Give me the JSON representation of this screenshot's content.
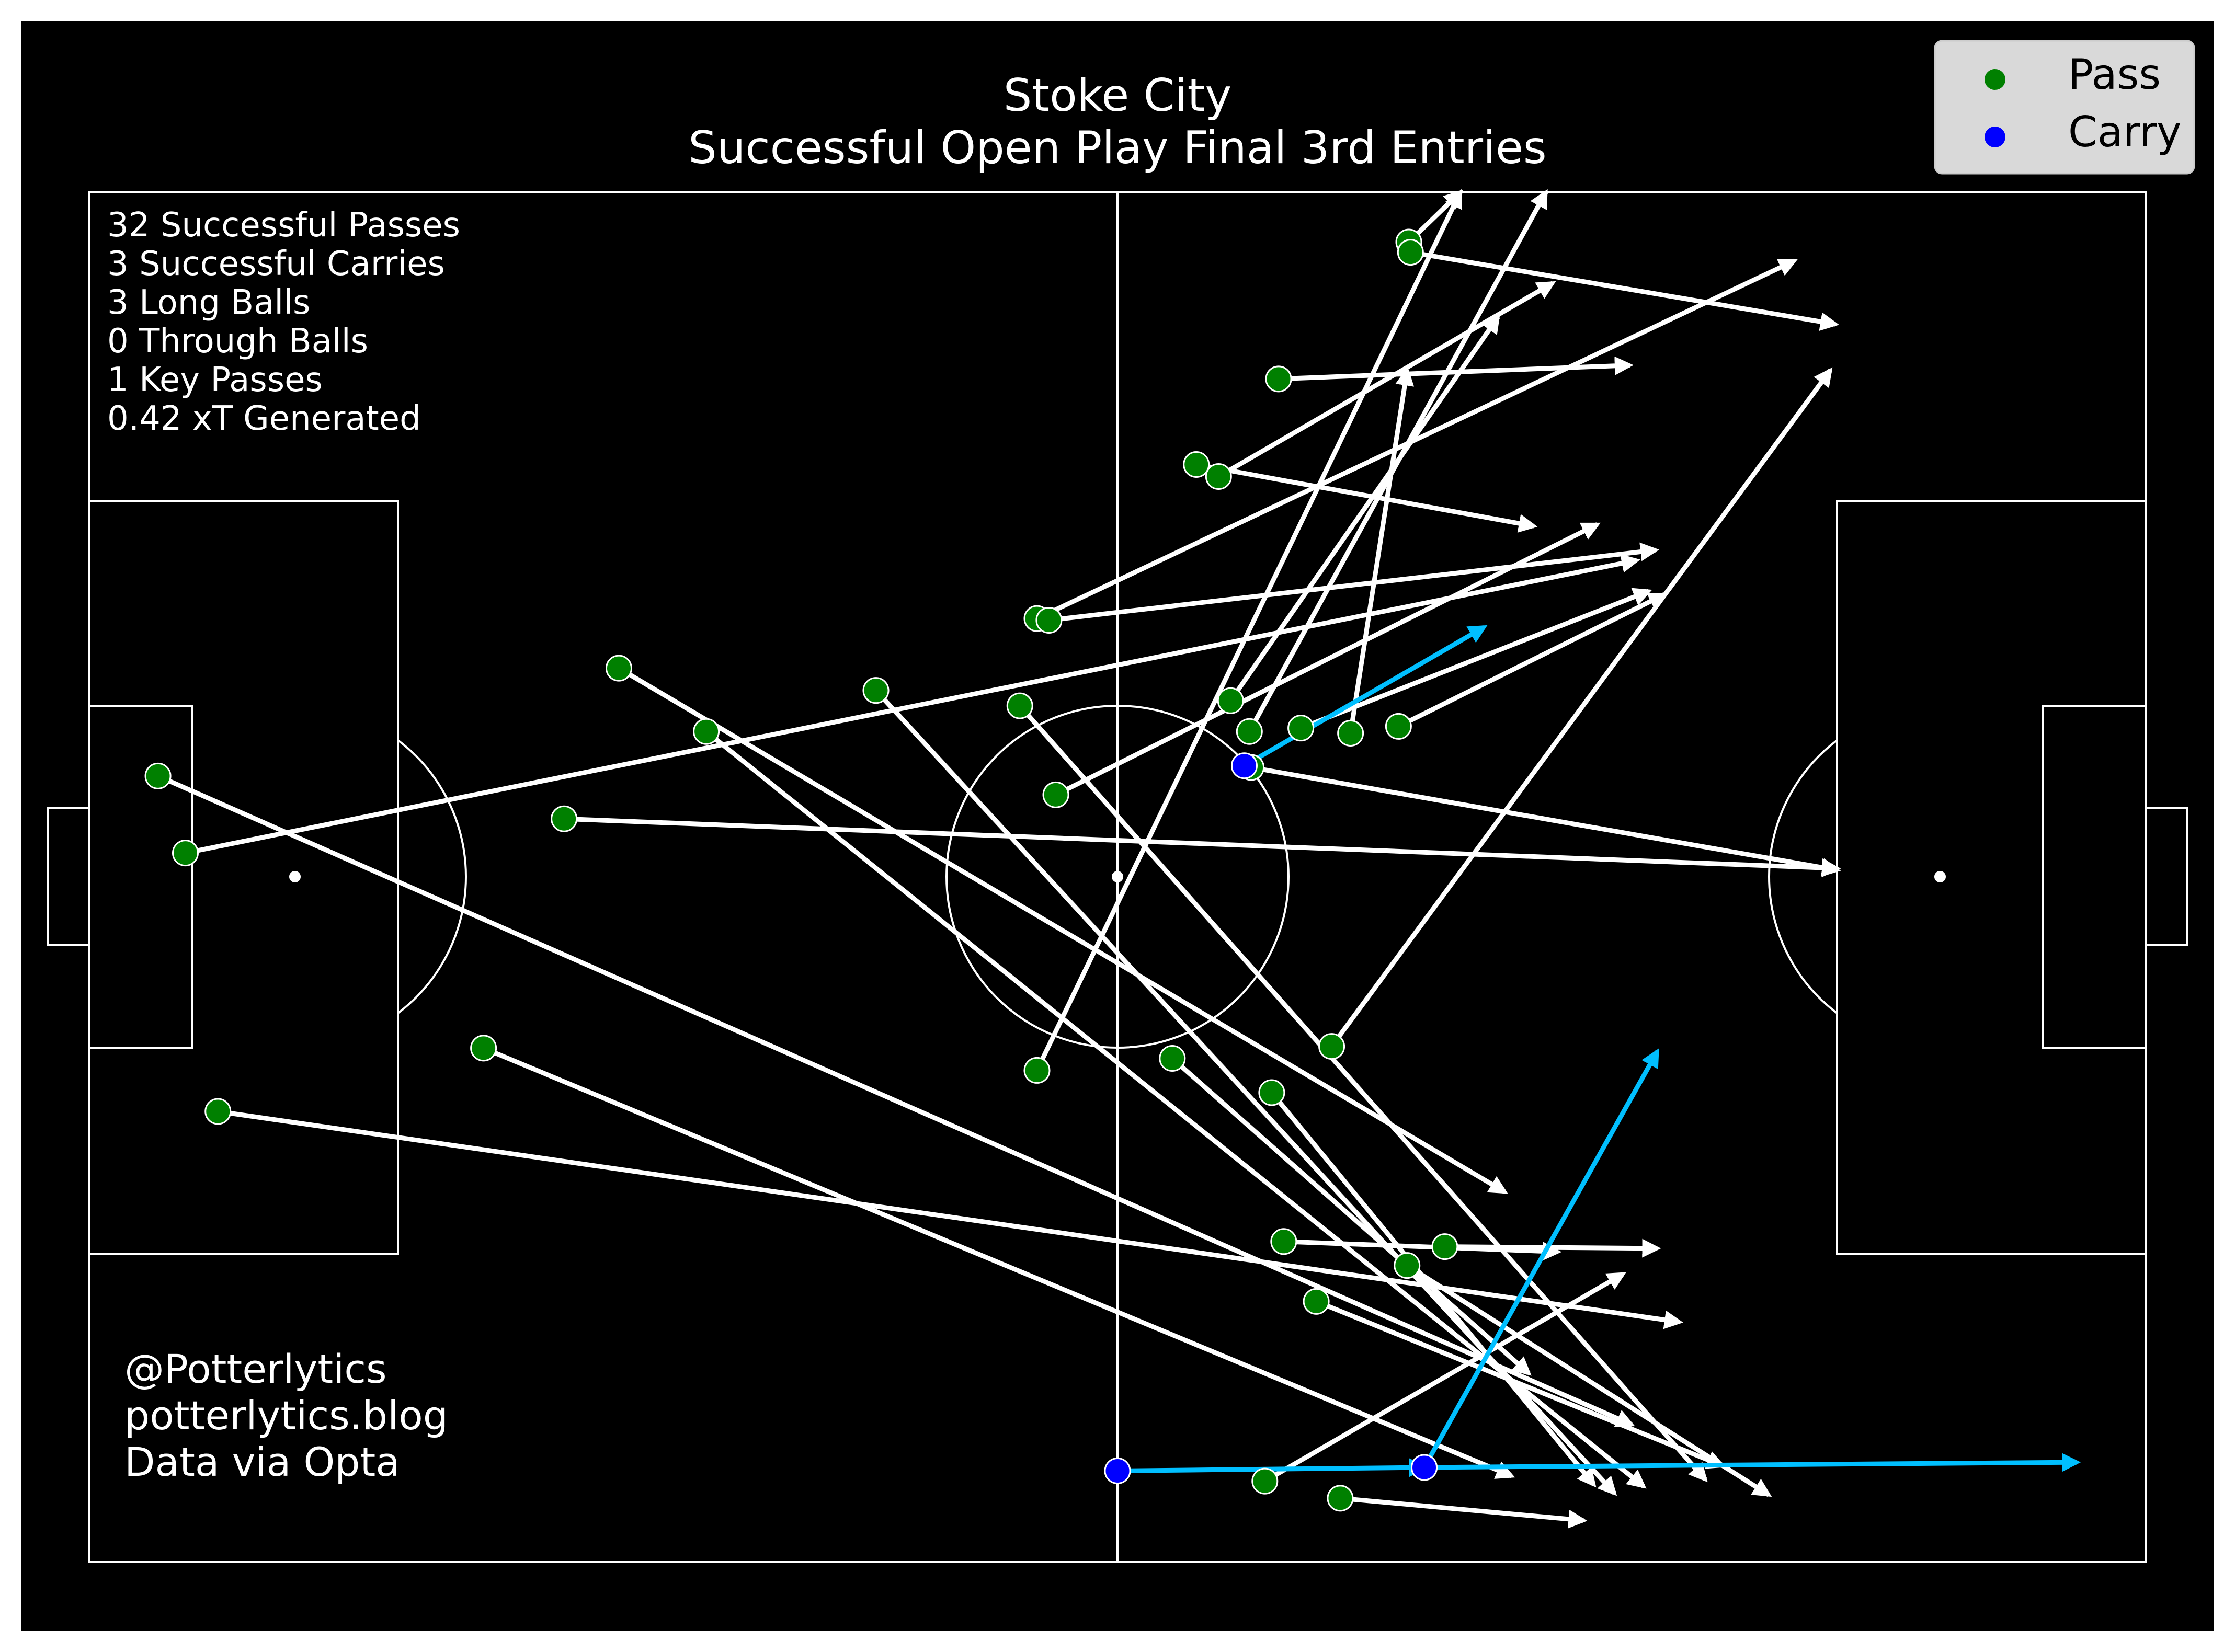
{
  "chart_data": {
    "type": "scatter",
    "title": [
      "Stoke City",
      "Successful Open Play Final 3rd Entries"
    ],
    "xlim": [
      0,
      120
    ],
    "ylim": [
      0,
      80
    ],
    "y_axis_direction": "down",
    "stats": [
      "32 Successful Passes",
      "3 Successful Carries",
      "3 Long Balls",
      "0 Through Balls",
      "1 Key Passes",
      "0.42 xT Generated"
    ],
    "credits": [
      "@Potterlytics",
      "potterlytics.blog",
      "Data via Opta"
    ],
    "legend": {
      "position": "top-right",
      "items": [
        {
          "label": "Pass",
          "color": "#008000"
        },
        {
          "label": "Carry",
          "color": "#0000ff"
        }
      ]
    },
    "colors": {
      "background": "#000000",
      "lines": "#ffffff",
      "pass_arrow": "#ffffff",
      "carry_arrow": "#00bfff",
      "pass_marker": "#008000",
      "carry_marker": "#0000ff"
    },
    "passes": [
      {
        "start": [
          77.0,
          2.9
        ],
        "end": [
          80.0,
          0.0
        ]
      },
      {
        "start": [
          77.1,
          3.5
        ],
        "end": [
          101.9,
          7.7
        ]
      },
      {
        "start": [
          69.4,
          10.9
        ],
        "end": [
          89.9,
          10.1
        ]
      },
      {
        "start": [
          64.6,
          15.9
        ],
        "end": [
          84.3,
          19.5
        ]
      },
      {
        "start": [
          65.9,
          16.6
        ],
        "end": [
          85.4,
          5.3
        ]
      },
      {
        "start": [
          55.3,
          24.9
        ],
        "end": [
          99.5,
          4.0
        ]
      },
      {
        "start": [
          56.0,
          25.0
        ],
        "end": [
          91.4,
          20.9
        ]
      },
      {
        "start": [
          30.9,
          27.8
        ],
        "end": [
          82.6,
          58.4
        ]
      },
      {
        "start": [
          36.0,
          31.5
        ],
        "end": [
          90.7,
          75.6
        ]
      },
      {
        "start": [
          45.9,
          29.1
        ],
        "end": [
          89.0,
          76.0
        ]
      },
      {
        "start": [
          54.3,
          30.0
        ],
        "end": [
          94.3,
          75.2
        ]
      },
      {
        "start": [
          66.6,
          29.7
        ],
        "end": [
          82.2,
          7.3
        ]
      },
      {
        "start": [
          67.7,
          31.5
        ],
        "end": [
          85.0,
          0.0
        ]
      },
      {
        "start": [
          70.7,
          31.3
        ],
        "end": [
          91.0,
          23.3
        ]
      },
      {
        "start": [
          73.6,
          31.6
        ],
        "end": [
          76.9,
          10.4
        ]
      },
      {
        "start": [
          76.4,
          31.2
        ],
        "end": [
          91.9,
          23.5
        ]
      },
      {
        "start": [
          4.0,
          34.1
        ],
        "end": [
          90.0,
          72.0
        ]
      },
      {
        "start": [
          5.6,
          38.6
        ],
        "end": [
          90.3,
          21.5
        ]
      },
      {
        "start": [
          27.7,
          36.6
        ],
        "end": [
          102.0,
          39.5
        ]
      },
      {
        "start": [
          56.4,
          35.2
        ],
        "end": [
          88.0,
          19.4
        ]
      },
      {
        "start": [
          67.8,
          33.6
        ],
        "end": [
          102.0,
          39.6
        ]
      },
      {
        "start": [
          72.5,
          49.9
        ],
        "end": [
          101.6,
          10.4
        ]
      },
      {
        "start": [
          23.0,
          50.0
        ],
        "end": [
          83.0,
          75.0
        ]
      },
      {
        "start": [
          55.3,
          51.3
        ],
        "end": [
          80.0,
          0.0
        ]
      },
      {
        "start": [
          63.2,
          50.6
        ],
        "end": [
          84.0,
          69.0
        ]
      },
      {
        "start": [
          69.0,
          52.6
        ],
        "end": [
          87.8,
          75.5
        ]
      },
      {
        "start": [
          7.5,
          53.7
        ],
        "end": [
          92.8,
          66.0
        ]
      },
      {
        "start": [
          69.7,
          61.3
        ],
        "end": [
          85.7,
          61.9
        ]
      },
      {
        "start": [
          79.1,
          61.6
        ],
        "end": [
          91.5,
          61.7
        ]
      },
      {
        "start": [
          76.9,
          62.7
        ],
        "end": [
          98.0,
          76.1
        ]
      },
      {
        "start": [
          71.6,
          64.8
        ],
        "end": [
          95.3,
          74.4
        ]
      },
      {
        "start": [
          68.6,
          75.3
        ],
        "end": [
          89.5,
          63.2
        ]
      },
      {
        "start": [
          73.0,
          76.3
        ],
        "end": [
          87.2,
          77.6
        ]
      }
    ],
    "carries": [
      {
        "start": [
          67.4,
          33.5
        ],
        "end": [
          81.4,
          25.4
        ]
      },
      {
        "start": [
          60.0,
          74.7
        ],
        "end": [
          77.9,
          74.5
        ]
      },
      {
        "start": [
          77.9,
          74.5
        ],
        "end": [
          91.5,
          50.2
        ]
      },
      {
        "start": [
          77.9,
          74.5
        ],
        "end": [
          116.0,
          74.2
        ]
      }
    ]
  }
}
